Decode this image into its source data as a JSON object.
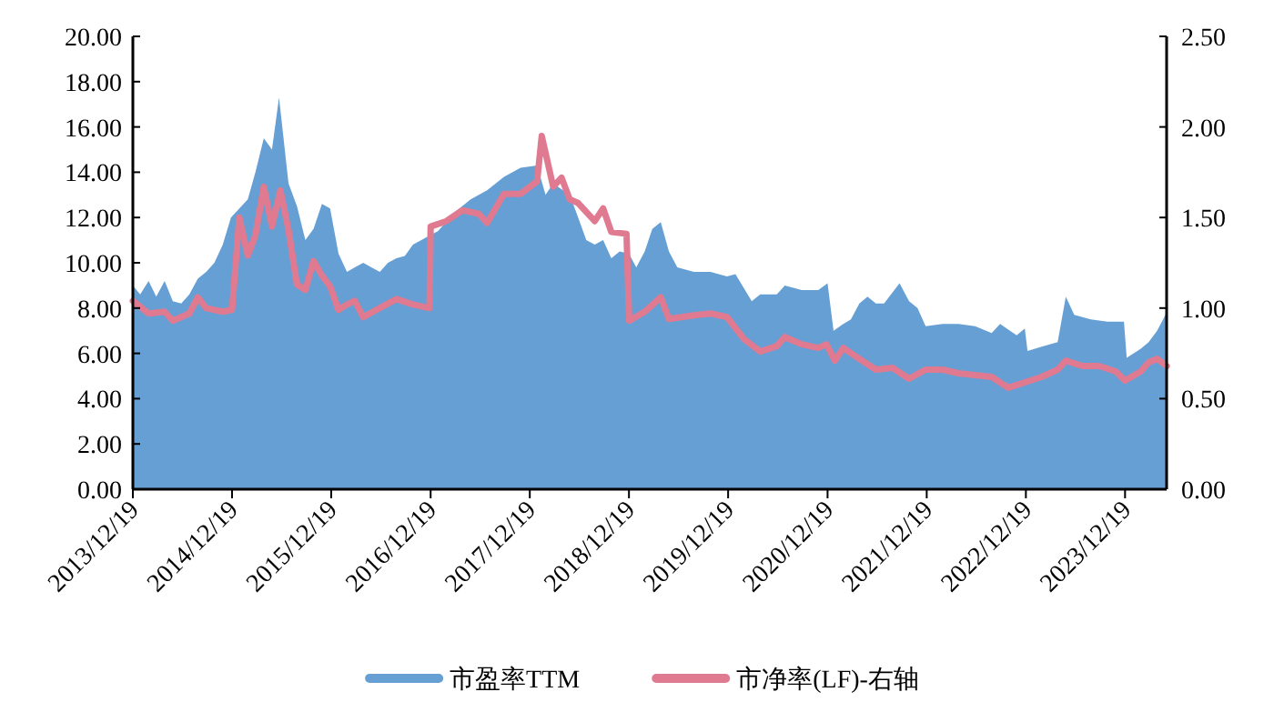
{
  "chart_data": {
    "type": "area",
    "legend": "bottom",
    "grid": false,
    "xlim": [
      "2013-12-19",
      "2024-05-20"
    ],
    "xticks": [
      {
        "value": "2013-12-19",
        "label": "2013/12/19"
      },
      {
        "value": "2014-12-19",
        "label": "2014/12/19"
      },
      {
        "value": "2015-12-19",
        "label": "2015/12/19"
      },
      {
        "value": "2016-12-19",
        "label": "2016/12/19"
      },
      {
        "value": "2017-12-19",
        "label": "2017/12/19"
      },
      {
        "value": "2018-12-19",
        "label": "2018/12/19"
      },
      {
        "value": "2019-12-19",
        "label": "2019/12/19"
      },
      {
        "value": "2020-12-19",
        "label": "2020/12/19"
      },
      {
        "value": "2021-12-19",
        "label": "2021/12/19"
      },
      {
        "value": "2022-12-19",
        "label": "2022/12/19"
      },
      {
        "value": "2023-12-19",
        "label": "2023/12/19"
      }
    ],
    "ylim": [
      0,
      20
    ],
    "yticks": [
      {
        "value": 0,
        "label": "0.00"
      },
      {
        "value": 2,
        "label": "2.00"
      },
      {
        "value": 4,
        "label": "4.00"
      },
      {
        "value": 6,
        "label": "6.00"
      },
      {
        "value": 8,
        "label": "8.00"
      },
      {
        "value": 10,
        "label": "10.00"
      },
      {
        "value": 12,
        "label": "12.00"
      },
      {
        "value": 14,
        "label": "14.00"
      },
      {
        "value": 16,
        "label": "16.00"
      },
      {
        "value": 18,
        "label": "18.00"
      },
      {
        "value": 20,
        "label": "20.00"
      }
    ],
    "y2lim": [
      0,
      2.5
    ],
    "y2ticks": [
      {
        "value": 0,
        "label": "0.00"
      },
      {
        "value": 0.5,
        "label": "0.50"
      },
      {
        "value": 1,
        "label": "1.00"
      },
      {
        "value": 1.5,
        "label": "1.50"
      },
      {
        "value": 2,
        "label": "2.00"
      },
      {
        "value": 2.5,
        "label": "2.50"
      }
    ],
    "series": [
      {
        "name": "市盈率TTM",
        "color": "#659fd4",
        "x": [
          "2013-12-19",
          "2014-01-15",
          "2014-02-15",
          "2014-03-15",
          "2014-04-15",
          "2014-05-15",
          "2014-06-15",
          "2014-07-15",
          "2014-08-15",
          "2014-09-15",
          "2014-10-15",
          "2014-11-15",
          "2014-12-15",
          "2015-01-15",
          "2015-02-15",
          "2015-03-15",
          "2015-04-15",
          "2015-05-15",
          "2015-06-10",
          "2015-07-15",
          "2015-08-15",
          "2015-09-15",
          "2015-10-15",
          "2015-11-15",
          "2015-12-15",
          "2016-01-15",
          "2016-02-15",
          "2016-03-15",
          "2016-04-15",
          "2016-05-15",
          "2016-06-15",
          "2016-07-15",
          "2016-08-15",
          "2016-09-15",
          "2016-10-15",
          "2016-11-15",
          "2016-12-15",
          "2017-01-15",
          "2017-03-15",
          "2017-05-15",
          "2017-07-15",
          "2017-09-15",
          "2017-11-15",
          "2018-01-15",
          "2018-02-15",
          "2018-03-15",
          "2018-05-15",
          "2018-06-15",
          "2018-07-15",
          "2018-08-15",
          "2018-09-15",
          "2018-10-15",
          "2018-11-15",
          "2018-12-19",
          "2019-01-15",
          "2019-02-15",
          "2019-03-15",
          "2019-04-15",
          "2019-05-15",
          "2019-06-15",
          "2019-08-15",
          "2019-10-15",
          "2019-12-15",
          "2020-01-15",
          "2020-03-15",
          "2020-04-15",
          "2020-06-15",
          "2020-07-15",
          "2020-09-15",
          "2020-11-15",
          "2020-12-19",
          "2021-01-10",
          "2021-02-15",
          "2021-03-15",
          "2021-04-15",
          "2021-05-15",
          "2021-06-15",
          "2021-07-15",
          "2021-09-10",
          "2021-10-15",
          "2021-11-15",
          "2021-12-15",
          "2022-02-15",
          "2022-04-15",
          "2022-06-15",
          "2022-08-15",
          "2022-09-15",
          "2022-11-15",
          "2022-12-15",
          "2022-12-25",
          "2023-02-15",
          "2023-04-15",
          "2023-05-15",
          "2023-06-15",
          "2023-08-15",
          "2023-10-15",
          "2023-12-15",
          "2023-12-25",
          "2024-02-15",
          "2024-03-15",
          "2024-04-15",
          "2024-05-20"
        ],
        "values": [
          9.0,
          8.6,
          9.2,
          8.5,
          9.2,
          8.3,
          8.2,
          8.6,
          9.3,
          9.6,
          10.0,
          10.8,
          12.0,
          12.4,
          12.8,
          14.0,
          15.5,
          15.0,
          17.3,
          13.5,
          12.5,
          11.0,
          11.5,
          12.6,
          12.4,
          10.4,
          9.6,
          9.8,
          10.0,
          9.8,
          9.6,
          10.0,
          10.2,
          10.3,
          10.8,
          11.0,
          11.2,
          11.4,
          12.2,
          12.8,
          13.2,
          13.8,
          14.2,
          14.3,
          13.0,
          13.5,
          13.0,
          12.0,
          11.0,
          10.8,
          11.0,
          10.2,
          10.5,
          10.4,
          9.8,
          10.5,
          11.5,
          11.8,
          10.5,
          9.8,
          9.6,
          9.6,
          9.4,
          9.5,
          8.3,
          8.6,
          8.6,
          9.0,
          8.8,
          8.8,
          9.1,
          7.0,
          7.3,
          7.5,
          8.2,
          8.5,
          8.2,
          8.2,
          9.1,
          8.3,
          8.0,
          7.2,
          7.3,
          7.3,
          7.2,
          6.9,
          7.3,
          6.8,
          7.1,
          6.1,
          6.3,
          6.5,
          8.5,
          7.7,
          7.5,
          7.4,
          7.4,
          5.8,
          6.2,
          6.5,
          7.0,
          7.8
        ]
      },
      {
        "name": "市净率(LF)-右轴",
        "type": "line",
        "axis": "y2",
        "color": "#e07a91",
        "x": [
          "2013-12-19",
          "2014-02-15",
          "2014-04-15",
          "2014-05-15",
          "2014-07-15",
          "2014-08-15",
          "2014-09-15",
          "2014-11-15",
          "2014-12-19",
          "2015-01-15",
          "2015-02-15",
          "2015-03-15",
          "2015-04-15",
          "2015-05-15",
          "2015-06-15",
          "2015-07-15",
          "2015-08-15",
          "2015-09-15",
          "2015-10-15",
          "2015-11-15",
          "2015-12-15",
          "2016-01-15",
          "2016-02-15",
          "2016-03-15",
          "2016-04-15",
          "2016-06-15",
          "2016-08-15",
          "2016-10-15",
          "2016-12-15",
          "2016-12-19",
          "2017-02-15",
          "2017-04-15",
          "2017-06-15",
          "2017-07-15",
          "2017-09-15",
          "2017-11-15",
          "2018-01-15",
          "2018-02-01",
          "2018-03-15",
          "2018-04-15",
          "2018-05-15",
          "2018-06-15",
          "2018-08-15",
          "2018-09-15",
          "2018-10-15",
          "2018-12-10",
          "2018-12-20",
          "2019-02-15",
          "2019-04-15",
          "2019-05-15",
          "2019-08-15",
          "2019-10-15",
          "2019-12-15",
          "2020-02-15",
          "2020-04-15",
          "2020-06-15",
          "2020-07-15",
          "2020-09-15",
          "2020-11-15",
          "2020-12-15",
          "2021-01-15",
          "2021-02-15",
          "2021-04-15",
          "2021-06-15",
          "2021-08-15",
          "2021-10-15",
          "2021-12-15",
          "2022-02-15",
          "2022-04-15",
          "2022-06-15",
          "2022-08-15",
          "2022-10-15",
          "2022-12-15",
          "2023-02-15",
          "2023-04-15",
          "2023-05-15",
          "2023-07-15",
          "2023-09-15",
          "2023-11-15",
          "2023-12-19",
          "2024-02-15",
          "2024-03-15",
          "2024-04-15",
          "2024-05-20"
        ],
        "values": [
          1.04,
          0.97,
          0.98,
          0.93,
          0.97,
          1.06,
          1.0,
          0.98,
          0.99,
          1.5,
          1.29,
          1.4,
          1.67,
          1.45,
          1.65,
          1.43,
          1.13,
          1.1,
          1.26,
          1.18,
          1.12,
          0.99,
          1.02,
          1.04,
          0.95,
          1.0,
          1.05,
          1.02,
          1.0,
          1.45,
          1.48,
          1.54,
          1.52,
          1.47,
          1.63,
          1.63,
          1.7,
          1.95,
          1.67,
          1.72,
          1.6,
          1.58,
          1.48,
          1.55,
          1.42,
          1.41,
          0.93,
          0.98,
          1.06,
          0.94,
          0.96,
          0.97,
          0.95,
          0.83,
          0.76,
          0.79,
          0.84,
          0.8,
          0.78,
          0.8,
          0.71,
          0.78,
          0.72,
          0.66,
          0.67,
          0.61,
          0.66,
          0.66,
          0.64,
          0.63,
          0.62,
          0.56,
          0.59,
          0.62,
          0.66,
          0.71,
          0.68,
          0.68,
          0.65,
          0.6,
          0.65,
          0.7,
          0.72,
          0.68
        ]
      }
    ]
  }
}
